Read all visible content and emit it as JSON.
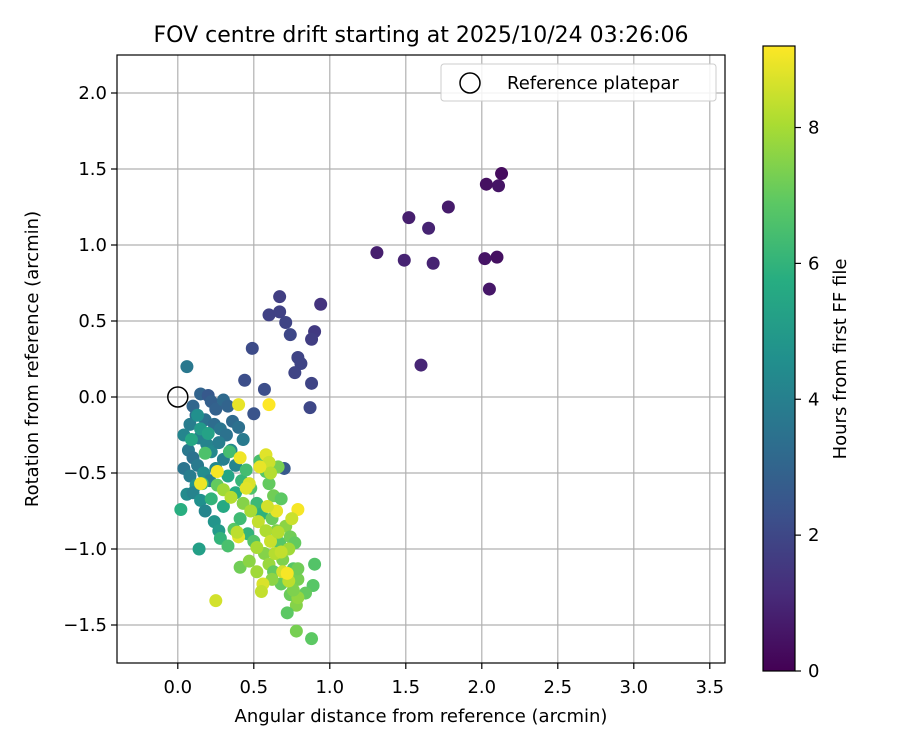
{
  "chart_data": {
    "type": "scatter",
    "title": "FOV centre drift starting at 2025/10/24 03:26:06",
    "xlabel": "Angular distance from reference (arcmin)",
    "ylabel": "Rotation from reference (arcmin)",
    "xlim": [
      -0.4,
      3.6
    ],
    "ylim": [
      -1.75,
      2.25
    ],
    "xticks": [
      0.0,
      0.5,
      1.0,
      1.5,
      2.0,
      2.5,
      3.0,
      3.5
    ],
    "xtick_labels": [
      "0.0",
      "0.5",
      "1.0",
      "1.5",
      "2.0",
      "2.5",
      "3.0",
      "3.5"
    ],
    "yticks": [
      -1.5,
      -1.0,
      -0.5,
      0.0,
      0.5,
      1.0,
      1.5,
      2.0
    ],
    "ytick_labels": [
      "−1.5",
      "−1.0",
      "−0.5",
      "0.0",
      "0.5",
      "1.0",
      "1.5",
      "2.0"
    ],
    "grid": true,
    "legend": {
      "placement": "top-right",
      "entries": [
        "Reference platepar"
      ]
    },
    "reference_point": {
      "x": 0.0,
      "y": 0.0
    },
    "colorbar": {
      "label": "Hours from first FF file",
      "colormap": "viridis",
      "range": [
        0,
        9.2
      ],
      "ticks": [
        0,
        2,
        4,
        6,
        8
      ],
      "tick_labels": [
        "0",
        "2",
        "4",
        "6",
        "8"
      ]
    },
    "points": [
      [
        2.13,
        1.47,
        0.3
      ],
      [
        2.11,
        1.39,
        0.5
      ],
      [
        2.03,
        1.4,
        0.4
      ],
      [
        1.78,
        1.25,
        0.7
      ],
      [
        1.52,
        1.18,
        0.8
      ],
      [
        1.65,
        1.11,
        0.9
      ],
      [
        1.31,
        0.95,
        0.8
      ],
      [
        1.49,
        0.9,
        0.9
      ],
      [
        1.68,
        0.88,
        0.9
      ],
      [
        2.02,
        0.91,
        0.5
      ],
      [
        2.1,
        0.92,
        0.4
      ],
      [
        2.05,
        0.71,
        0.6
      ],
      [
        1.6,
        0.21,
        1.0
      ],
      [
        0.94,
        0.61,
        1.4
      ],
      [
        0.67,
        0.66,
        1.7
      ],
      [
        0.6,
        0.54,
        1.8
      ],
      [
        0.67,
        0.56,
        1.8
      ],
      [
        0.71,
        0.49,
        1.9
      ],
      [
        0.74,
        0.41,
        2.0
      ],
      [
        0.9,
        0.43,
        1.6
      ],
      [
        0.88,
        0.38,
        1.7
      ],
      [
        0.49,
        0.32,
        2.1
      ],
      [
        0.79,
        0.26,
        1.9
      ],
      [
        0.81,
        0.22,
        1.9
      ],
      [
        0.77,
        0.16,
        1.9
      ],
      [
        0.44,
        0.11,
        2.2
      ],
      [
        0.57,
        0.05,
        2.2
      ],
      [
        0.88,
        0.09,
        1.9
      ],
      [
        0.87,
        -0.07,
        2.0
      ],
      [
        0.5,
        -0.11,
        2.4
      ],
      [
        0.7,
        -0.47,
        2.6
      ],
      [
        0.06,
        0.2,
        3.7
      ],
      [
        0.15,
        0.02,
        3.0
      ],
      [
        0.2,
        0.01,
        2.6
      ],
      [
        0.22,
        -0.03,
        2.8
      ],
      [
        0.25,
        -0.08,
        2.9
      ],
      [
        0.3,
        -0.02,
        3.2
      ],
      [
        0.33,
        -0.06,
        3.0
      ],
      [
        0.1,
        -0.06,
        3.1
      ],
      [
        0.12,
        -0.12,
        3.3
      ],
      [
        0.18,
        -0.15,
        3.5
      ],
      [
        0.24,
        -0.18,
        3.3
      ],
      [
        0.28,
        -0.21,
        3.6
      ],
      [
        0.32,
        -0.25,
        3.5
      ],
      [
        0.36,
        -0.16,
        3.2
      ],
      [
        0.4,
        -0.2,
        3.4
      ],
      [
        0.43,
        -0.28,
        3.8
      ],
      [
        0.08,
        -0.18,
        3.9
      ],
      [
        0.04,
        -0.25,
        4.2
      ],
      [
        0.14,
        -0.27,
        4.0
      ],
      [
        0.19,
        -0.31,
        4.1
      ],
      [
        0.22,
        -0.36,
        4.3
      ],
      [
        0.27,
        -0.3,
        3.9
      ],
      [
        0.3,
        -0.41,
        4.0
      ],
      [
        0.35,
        -0.35,
        4.4
      ],
      [
        0.38,
        -0.45,
        4.2
      ],
      [
        0.07,
        -0.35,
        3.7
      ],
      [
        0.1,
        -0.4,
        3.5
      ],
      [
        0.13,
        -0.45,
        3.8
      ],
      [
        0.04,
        -0.47,
        3.6
      ],
      [
        0.08,
        -0.52,
        3.9
      ],
      [
        0.17,
        -0.5,
        4.5
      ],
      [
        0.21,
        -0.55,
        4.0
      ],
      [
        0.25,
        -0.47,
        4.3
      ],
      [
        0.12,
        -0.58,
        4.7
      ],
      [
        0.06,
        -0.64,
        4.4
      ],
      [
        0.1,
        -0.63,
        4.1
      ],
      [
        0.15,
        -0.68,
        4.6
      ],
      [
        0.18,
        -0.75,
        4.2
      ],
      [
        0.24,
        -0.82,
        4.8
      ],
      [
        0.27,
        -0.88,
        5.0
      ],
      [
        0.14,
        -1.0,
        5.2
      ],
      [
        0.02,
        -0.74,
        5.8
      ],
      [
        0.13,
        -0.12,
        4.6
      ],
      [
        0.15,
        -0.21,
        5.0
      ],
      [
        0.2,
        -0.24,
        5.3
      ],
      [
        0.09,
        -0.28,
        5.5
      ],
      [
        0.16,
        -0.57,
        6.3
      ],
      [
        0.22,
        -0.67,
        6.0
      ],
      [
        0.3,
        -0.72,
        5.6
      ],
      [
        0.33,
        -0.52,
        5.4
      ],
      [
        0.38,
        -0.63,
        5.7
      ],
      [
        0.42,
        -0.55,
        6.1
      ],
      [
        0.45,
        -0.48,
        6.4
      ],
      [
        0.48,
        -0.6,
        6.6
      ],
      [
        0.52,
        -0.7,
        6.2
      ],
      [
        0.55,
        -0.77,
        5.9
      ],
      [
        0.28,
        -0.93,
        6.0
      ],
      [
        0.33,
        -0.98,
        6.5
      ],
      [
        0.37,
        -0.87,
        6.8
      ],
      [
        0.41,
        -0.8,
        6.3
      ],
      [
        0.46,
        -0.9,
        6.0
      ],
      [
        0.5,
        -0.95,
        6.7
      ],
      [
        0.54,
        -0.42,
        6.5
      ],
      [
        0.58,
        -0.49,
        6.8
      ],
      [
        0.6,
        -0.57,
        7.0
      ],
      [
        0.63,
        -0.65,
        7.2
      ],
      [
        0.66,
        -0.46,
        7.3
      ],
      [
        0.68,
        -0.67,
        6.9
      ],
      [
        0.62,
        -0.8,
        7.1
      ],
      [
        0.65,
        -0.88,
        7.4
      ],
      [
        0.67,
        -0.96,
        6.8
      ],
      [
        0.71,
        -0.85,
        7.6
      ],
      [
        0.74,
        -0.92,
        7.2
      ],
      [
        0.77,
        -0.96,
        7.0
      ],
      [
        0.57,
        -1.03,
        7.5
      ],
      [
        0.6,
        -1.1,
        7.8
      ],
      [
        0.63,
        -1.15,
        7.0
      ],
      [
        0.69,
        -1.07,
        7.4
      ],
      [
        0.73,
        -1.0,
        7.9
      ],
      [
        0.76,
        -1.13,
        6.8
      ],
      [
        0.79,
        -1.2,
        7.3
      ],
      [
        0.41,
        -1.12,
        7.2
      ],
      [
        0.47,
        -1.08,
        7.6
      ],
      [
        0.52,
        -1.15,
        7.9
      ],
      [
        0.74,
        -1.3,
        7.1
      ],
      [
        0.78,
        -1.37,
        7.5
      ],
      [
        0.72,
        -1.42,
        6.9
      ],
      [
        0.78,
        -1.54,
        7.3
      ],
      [
        0.88,
        -1.59,
        6.9
      ],
      [
        0.9,
        -1.1,
        6.7
      ],
      [
        0.79,
        -1.13,
        7.2
      ],
      [
        0.89,
        -1.24,
        6.8
      ],
      [
        0.84,
        -1.29,
        7.0
      ],
      [
        0.79,
        -1.32,
        7.7
      ],
      [
        0.76,
        -1.27,
        7.4
      ],
      [
        0.68,
        -1.23,
        7.0
      ],
      [
        0.62,
        -1.2,
        7.6
      ],
      [
        0.18,
        -0.37,
        6.6
      ],
      [
        0.34,
        -0.36,
        6.4
      ],
      [
        0.26,
        -0.58,
        7.0
      ],
      [
        0.3,
        -0.61,
        7.9
      ],
      [
        0.35,
        -0.66,
        8.2
      ],
      [
        0.43,
        -0.7,
        7.5
      ],
      [
        0.48,
        -0.75,
        8.0
      ],
      [
        0.53,
        -0.82,
        8.4
      ],
      [
        0.58,
        -0.88,
        8.1
      ],
      [
        0.61,
        -0.95,
        8.5
      ],
      [
        0.64,
        -1.03,
        8.2
      ],
      [
        0.69,
        -1.15,
        8.6
      ],
      [
        0.73,
        -1.21,
        8.3
      ],
      [
        0.56,
        -1.23,
        8.7
      ],
      [
        0.55,
        -1.28,
        8.4
      ],
      [
        0.25,
        -1.34,
        8.6
      ],
      [
        0.58,
        -0.38,
        8.8
      ],
      [
        0.6,
        -0.43,
        8.5
      ],
      [
        0.61,
        -0.5,
        8.2
      ],
      [
        0.54,
        -0.46,
        8.9
      ],
      [
        0.47,
        -0.57,
        8.7
      ],
      [
        0.41,
        -0.4,
        9.0
      ],
      [
        0.4,
        -0.92,
        8.8
      ],
      [
        0.39,
        -0.89,
        8.3
      ],
      [
        0.72,
        -1.16,
        9.1
      ],
      [
        0.79,
        -0.74,
        9.1
      ],
      [
        0.75,
        -0.8,
        8.5
      ],
      [
        0.65,
        -0.75,
        8.9
      ],
      [
        0.59,
        -0.72,
        8.6
      ],
      [
        0.26,
        -0.49,
        9.1
      ],
      [
        0.15,
        -0.57,
        9.0
      ],
      [
        0.4,
        -0.05,
        8.9
      ],
      [
        0.6,
        -0.05,
        9.2
      ],
      [
        0.45,
        -0.6,
        8.8
      ],
      [
        0.68,
        -1.02,
        8.4
      ],
      [
        0.66,
        -0.89,
        8.2
      ],
      [
        0.52,
        -0.99,
        8.0
      ]
    ]
  }
}
